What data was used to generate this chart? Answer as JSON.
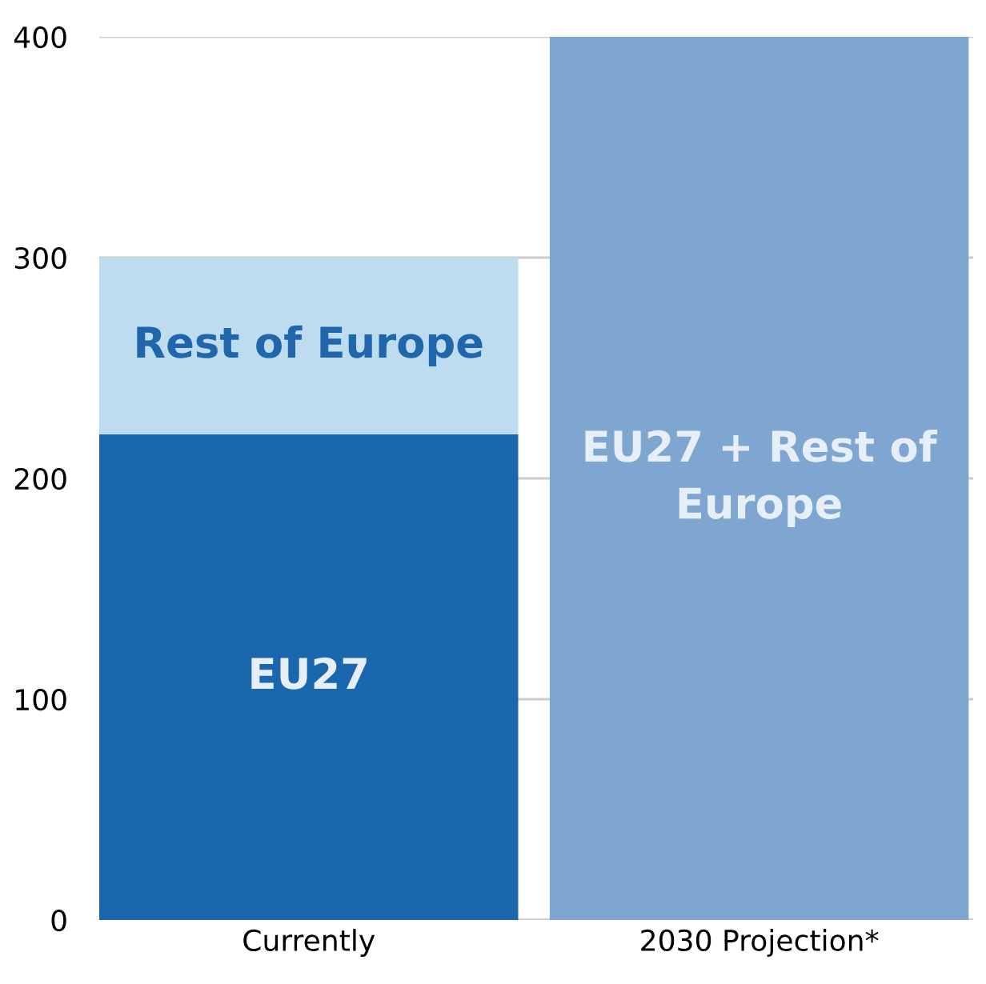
{
  "chart_data": {
    "type": "bar",
    "stacked": true,
    "categories": [
      "Currently",
      "2030 Projection*"
    ],
    "series": [
      {
        "name": "EU27",
        "color": "#1a67ad",
        "values": [
          220,
          null
        ]
      },
      {
        "name": "Rest of Europe",
        "color": "#bddcf0",
        "values": [
          80,
          null
        ]
      },
      {
        "name": "EU27 + Rest of Europe",
        "color": "#7fa6d0",
        "values": [
          null,
          400
        ]
      }
    ],
    "ylim": [
      0,
      400
    ],
    "yticks": [
      0,
      100,
      200,
      300,
      400
    ],
    "grid": "y",
    "legend": false
  }
}
